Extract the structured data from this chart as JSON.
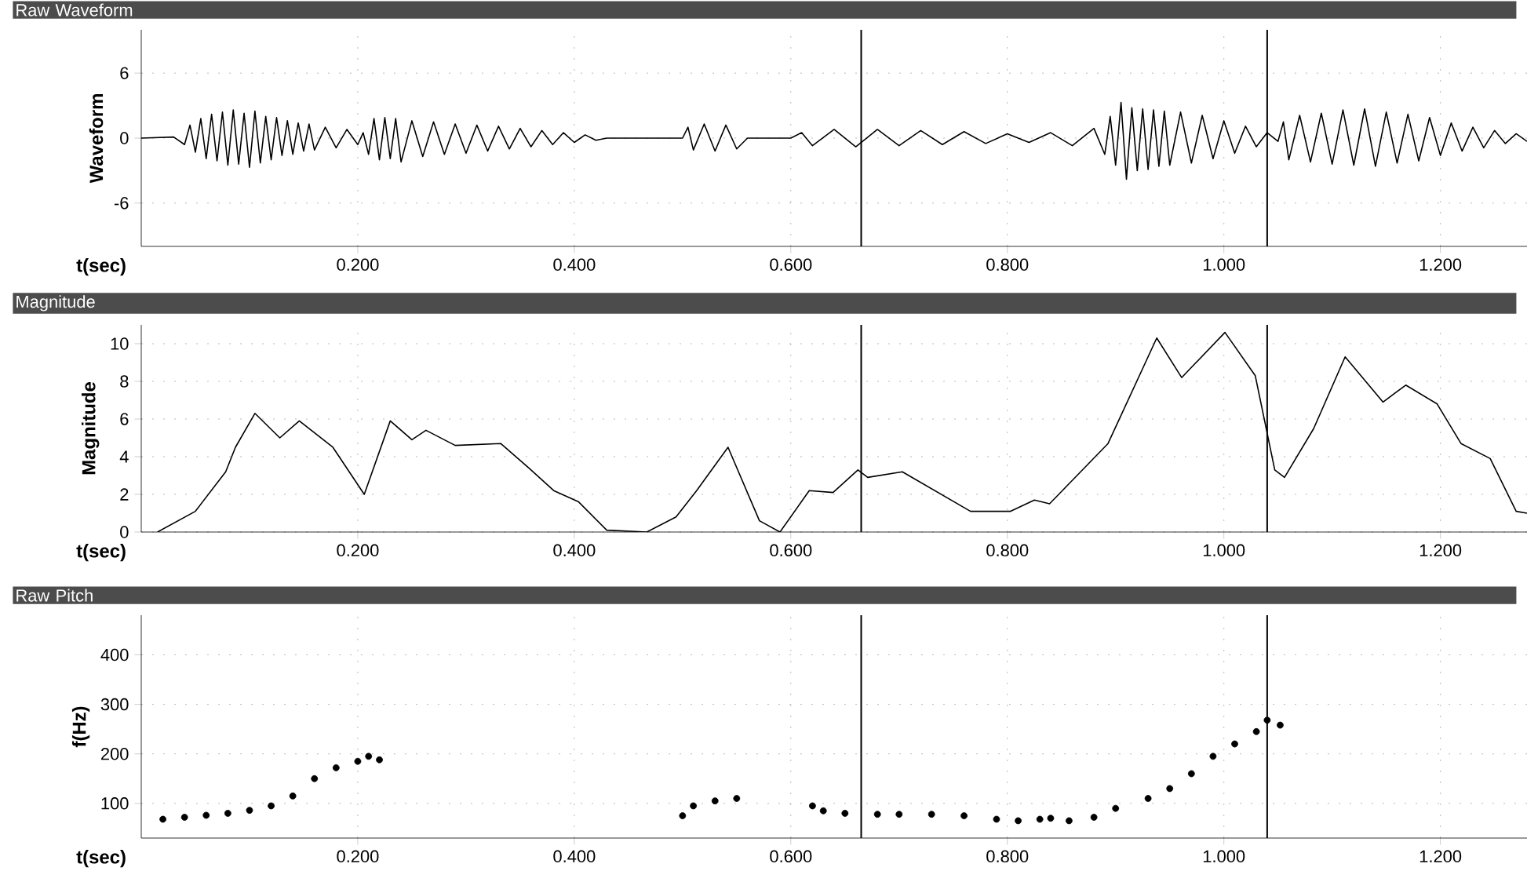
{
  "chart_data": [
    {
      "type": "line",
      "title": "Raw Waveform",
      "ylabel": "Waveform",
      "xlabel": "t(sec)",
      "grid": true,
      "xlim": [
        0,
        1.28
      ],
      "ylim": [
        -10,
        10
      ],
      "xticks": [
        {
          "value": 0.2,
          "label": "0.200"
        },
        {
          "value": 0.4,
          "label": "0.400"
        },
        {
          "value": 0.6,
          "label": "0.600"
        },
        {
          "value": 0.8,
          "label": "0.800"
        },
        {
          "value": 1.0,
          "label": "1.000"
        },
        {
          "value": 1.2,
          "label": "1.200"
        }
      ],
      "yticks": [
        -6,
        0,
        6
      ],
      "ref_lines": [
        {
          "axis": "x",
          "value": 0.665,
          "color": "#000000"
        },
        {
          "axis": "x",
          "value": 1.04,
          "color": "#000000"
        }
      ],
      "x": [
        0,
        0.03,
        0.04,
        0.045,
        0.05,
        0.055,
        0.06,
        0.065,
        0.07,
        0.075,
        0.08,
        0.085,
        0.09,
        0.095,
        0.1,
        0.105,
        0.11,
        0.115,
        0.12,
        0.125,
        0.13,
        0.135,
        0.14,
        0.145,
        0.15,
        0.155,
        0.16,
        0.17,
        0.18,
        0.19,
        0.2,
        0.205,
        0.21,
        0.215,
        0.22,
        0.225,
        0.23,
        0.235,
        0.24,
        0.25,
        0.26,
        0.27,
        0.28,
        0.29,
        0.3,
        0.31,
        0.32,
        0.33,
        0.34,
        0.35,
        0.36,
        0.37,
        0.38,
        0.39,
        0.4,
        0.41,
        0.42,
        0.43,
        0.5,
        0.505,
        0.51,
        0.52,
        0.53,
        0.54,
        0.55,
        0.56,
        0.6,
        0.61,
        0.62,
        0.64,
        0.66,
        0.68,
        0.7,
        0.72,
        0.74,
        0.76,
        0.78,
        0.8,
        0.82,
        0.84,
        0.86,
        0.88,
        0.89,
        0.895,
        0.9,
        0.905,
        0.91,
        0.915,
        0.92,
        0.925,
        0.93,
        0.935,
        0.94,
        0.945,
        0.95,
        0.96,
        0.97,
        0.98,
        0.99,
        1.0,
        1.01,
        1.02,
        1.03,
        1.04,
        1.05,
        1.055,
        1.06,
        1.07,
        1.08,
        1.09,
        1.1,
        1.11,
        1.12,
        1.13,
        1.14,
        1.15,
        1.16,
        1.17,
        1.18,
        1.19,
        1.2,
        1.21,
        1.22,
        1.23,
        1.24,
        1.25,
        1.26,
        1.27,
        1.28
      ],
      "series": [
        {
          "color": "#000000",
          "values": [
            0,
            0.1,
            -0.6,
            1.2,
            -1.3,
            1.8,
            -1.9,
            2.2,
            -2.1,
            2.4,
            -2.5,
            2.6,
            -2.4,
            2.3,
            -2.7,
            2.5,
            -2.3,
            2.0,
            -2.0,
            1.9,
            -1.6,
            1.6,
            -1.5,
            1.4,
            -1.2,
            1.3,
            -1.1,
            1.0,
            -0.9,
            0.8,
            -0.6,
            0.5,
            -1.5,
            1.8,
            -2.0,
            1.9,
            -1.9,
            1.8,
            -2.2,
            1.6,
            -1.7,
            1.5,
            -1.5,
            1.3,
            -1.4,
            1.2,
            -1.2,
            1.1,
            -1.0,
            0.9,
            -0.8,
            0.7,
            -0.6,
            0.5,
            -0.4,
            0.3,
            -0.2,
            0,
            0,
            1.0,
            -1.1,
            1.3,
            -1.2,
            1.2,
            -1.0,
            0,
            0,
            0.5,
            -0.7,
            0.8,
            -0.8,
            0.8,
            -0.7,
            0.7,
            -0.6,
            0.6,
            -0.5,
            0.4,
            -0.4,
            0.5,
            -0.7,
            0.9,
            -1.5,
            2.0,
            -2.5,
            3.3,
            -3.8,
            2.8,
            -3.0,
            2.7,
            -2.9,
            2.6,
            -2.6,
            2.5,
            -2.5,
            2.4,
            -2.3,
            2.1,
            -1.9,
            1.6,
            -1.4,
            1.1,
            -0.8,
            0.5,
            -0.3,
            1.5,
            -2.0,
            2.1,
            -2.2,
            2.3,
            -2.4,
            2.6,
            -2.5,
            2.7,
            -2.6,
            2.4,
            -2.3,
            2.2,
            -2.1,
            1.9,
            -1.6,
            1.4,
            -1.2,
            1.0,
            -0.9,
            0.7,
            -0.5,
            0.4,
            -0.3
          ]
        }
      ]
    },
    {
      "type": "line",
      "title": "Magnitude",
      "ylabel": "Magnitude",
      "xlabel": "t(sec)",
      "grid": true,
      "xlim": [
        0,
        1.28
      ],
      "ylim": [
        0,
        11
      ],
      "xticks": [
        {
          "value": 0.2,
          "label": "0.200"
        },
        {
          "value": 0.4,
          "label": "0.400"
        },
        {
          "value": 0.6,
          "label": "0.600"
        },
        {
          "value": 0.8,
          "label": "0.800"
        },
        {
          "value": 1.0,
          "label": "1.000"
        },
        {
          "value": 1.2,
          "label": "1.200"
        }
      ],
      "yticks": [
        0,
        2,
        4,
        6,
        8,
        10
      ],
      "ref_lines": [
        {
          "axis": "x",
          "value": 0.665,
          "color": "#000000"
        },
        {
          "axis": "x",
          "value": 1.04,
          "color": "#000000"
        }
      ],
      "x": [
        0.015,
        0.05,
        0.078,
        0.087,
        0.105,
        0.128,
        0.146,
        0.177,
        0.206,
        0.23,
        0.25,
        0.263,
        0.29,
        0.332,
        0.358,
        0.381,
        0.404,
        0.43,
        0.467,
        0.494,
        0.513,
        0.542,
        0.571,
        0.59,
        0.617,
        0.639,
        0.662,
        0.671,
        0.703,
        0.766,
        0.803,
        0.825,
        0.839,
        0.893,
        0.938,
        0.961,
        1.001,
        1.029,
        1.047,
        1.056,
        1.083,
        1.112,
        1.147,
        1.168,
        1.197,
        1.219,
        1.246,
        1.27,
        1.28
      ],
      "series": [
        {
          "color": "#000000",
          "values": [
            0,
            1.1,
            3.2,
            4.5,
            6.3,
            5.0,
            5.9,
            4.5,
            2.0,
            5.9,
            4.9,
            5.4,
            4.6,
            4.7,
            3.4,
            2.2,
            1.6,
            0.1,
            0,
            0.8,
            2.2,
            4.5,
            0.6,
            0,
            2.2,
            2.1,
            3.3,
            2.9,
            3.2,
            1.1,
            1.1,
            1.7,
            1.5,
            4.7,
            10.3,
            8.2,
            10.6,
            8.3,
            3.3,
            2.9,
            5.5,
            9.3,
            6.9,
            7.8,
            6.8,
            4.7,
            3.9,
            1.1,
            1.0
          ]
        }
      ]
    },
    {
      "type": "scatter",
      "title": "Raw Pitch",
      "ylabel": "f(Hz)",
      "xlabel": "t(sec)",
      "grid": true,
      "xlim": [
        0,
        1.28
      ],
      "ylim": [
        30,
        480
      ],
      "xticks": [
        {
          "value": 0.2,
          "label": "0.200"
        },
        {
          "value": 0.4,
          "label": "0.400"
        },
        {
          "value": 0.6,
          "label": "0.600"
        },
        {
          "value": 0.8,
          "label": "0.800"
        },
        {
          "value": 1.0,
          "label": "1.000"
        },
        {
          "value": 1.2,
          "label": "1.200"
        }
      ],
      "yticks": [
        100,
        200,
        300,
        400
      ],
      "ref_lines": [
        {
          "axis": "x",
          "value": 0.665,
          "color": "#000000"
        },
        {
          "axis": "x",
          "value": 1.04,
          "color": "#000000"
        }
      ],
      "x": [
        0.02,
        0.04,
        0.06,
        0.08,
        0.1,
        0.12,
        0.14,
        0.16,
        0.18,
        0.2,
        0.21,
        0.22,
        0.5,
        0.51,
        0.53,
        0.55,
        0.62,
        0.63,
        0.65,
        0.68,
        0.7,
        0.73,
        0.76,
        0.79,
        0.81,
        0.83,
        0.84,
        0.857,
        0.88,
        0.9,
        0.93,
        0.95,
        0.97,
        0.99,
        1.01,
        1.03,
        1.04,
        1.052
      ],
      "series": [
        {
          "color": "#000000",
          "values": [
            68,
            72,
            76,
            80,
            86,
            95,
            115,
            150,
            172,
            185,
            195,
            188,
            75,
            95,
            105,
            110,
            95,
            85,
            80,
            78,
            78,
            78,
            75,
            68,
            65,
            68,
            70,
            65,
            72,
            90,
            110,
            130,
            160,
            195,
            220,
            245,
            268,
            258
          ]
        }
      ]
    }
  ]
}
